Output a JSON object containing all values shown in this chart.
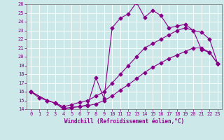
{
  "xlabel": "Windchill (Refroidissement éolien,°C)",
  "bg_color": "#cce8e8",
  "grid_color": "#aacccc",
  "line_color": "#880088",
  "xlim": [
    -0.5,
    23.5
  ],
  "ylim": [
    14,
    26
  ],
  "xticks": [
    0,
    1,
    2,
    3,
    4,
    5,
    6,
    7,
    8,
    9,
    10,
    11,
    12,
    13,
    14,
    15,
    16,
    17,
    18,
    19,
    20,
    21,
    22,
    23
  ],
  "yticks": [
    14,
    15,
    16,
    17,
    18,
    19,
    20,
    21,
    22,
    23,
    24,
    25,
    26
  ],
  "line1_x": [
    0,
    1,
    2,
    3,
    4,
    5,
    6,
    7,
    8,
    9,
    10,
    11,
    12,
    13,
    14,
    15,
    16,
    17,
    18,
    19,
    20,
    21,
    22,
    23
  ],
  "line1_y": [
    16.0,
    15.3,
    15.0,
    14.7,
    14.0,
    14.2,
    14.3,
    14.5,
    17.6,
    15.2,
    23.3,
    24.4,
    24.9,
    26.2,
    24.5,
    25.3,
    24.7,
    23.3,
    23.5,
    23.7,
    23.0,
    20.8,
    20.5,
    19.2
  ],
  "line2_x": [
    0,
    2,
    3,
    4,
    5,
    6,
    7,
    8,
    9,
    10,
    11,
    12,
    13,
    14,
    15,
    16,
    17,
    18,
    19,
    20,
    21,
    22,
    23
  ],
  "line2_y": [
    16.0,
    15.0,
    14.7,
    14.3,
    14.5,
    14.8,
    15.0,
    15.5,
    16.0,
    17.0,
    18.0,
    19.0,
    20.0,
    21.0,
    21.5,
    22.0,
    22.5,
    23.0,
    23.3,
    23.0,
    22.8,
    22.0,
    19.2
  ],
  "line3_x": [
    0,
    2,
    3,
    4,
    5,
    6,
    7,
    8,
    9,
    10,
    11,
    12,
    13,
    14,
    15,
    16,
    17,
    18,
    19,
    20,
    21,
    22,
    23
  ],
  "line3_y": [
    16.0,
    15.0,
    14.7,
    14.1,
    14.2,
    14.3,
    14.4,
    14.6,
    15.0,
    15.5,
    16.2,
    16.8,
    17.5,
    18.2,
    18.8,
    19.3,
    19.8,
    20.2,
    20.6,
    21.0,
    21.0,
    20.5,
    19.2
  ]
}
